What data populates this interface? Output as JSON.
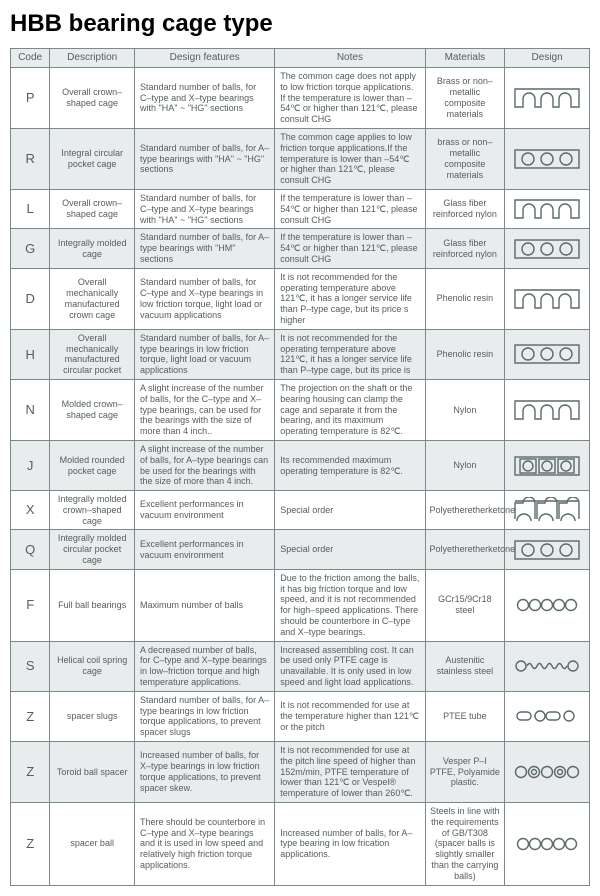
{
  "title": "HBB bearing cage type",
  "headers": [
    "Code",
    "Description",
    "Design features",
    "Notes",
    "Materials",
    "Design"
  ],
  "rows": [
    {
      "shaded": false,
      "code": "P",
      "desc": "Overall crown–shaped cage",
      "feat": "Standard number of balls, for C–type and X–type bearings with \"HA\" ~ \"HG\" sections",
      "notes": "The common cage does not apply to low friction torque applications. If the temperature is lower than –54℃ or higher than 121℃, please consult CHG",
      "mat": "Brass or non–metallic composite materials",
      "design": "crown"
    },
    {
      "shaded": true,
      "code": "R",
      "desc": "Integral circular pocket cage",
      "feat": "Standard number of balls, for A–type bearings with \"HA\" ~ \"HG\" sections",
      "notes": "The common cage applies to low friction torque applications.If the temperature is lower than –54℃ or higher than 121℃, please consult CHG",
      "mat": "brass or non–metallic composite materials",
      "design": "circbox"
    },
    {
      "shaded": false,
      "code": "L",
      "desc": "Overall crown–shaped cage",
      "feat": "Standard number of balls, for C–type and X–type bearings with \"HA\" ~ \"HG\" sections",
      "notes": "If the temperature is lower than –54℃ or higher than 121℃, please consult CHG",
      "mat": "Glass fiber reinforced nylon",
      "design": "crown"
    },
    {
      "shaded": true,
      "code": "G",
      "desc": "Integrally molded cage",
      "feat": "Standard number of balls, for A–type bearings with \"HM\" sections",
      "notes": "If the temperature is lower than –54℃ or higher than 121℃, please consult CHG",
      "mat": "Glass fiber reinforced nylon",
      "design": "circbox"
    },
    {
      "shaded": false,
      "code": "D",
      "desc": "Overall mechanically manufactured crown cage",
      "feat": "Standard number of balls, for C–type and X–type bearings in low friction torque, light load or vacuum applications",
      "notes": "It is not recommended for the operating temperature above 121℃, it has a longer service life than P–type cage, but its price s higher",
      "mat": "Phenolic resin",
      "design": "crown"
    },
    {
      "shaded": true,
      "code": "H",
      "desc": "Overall mechanically manufactured circular pocket",
      "feat": "Standard number of balls, for A–type bearings in low friction torque, light load or vacuum applications",
      "notes": "It is not recommended for the operating temperature above 121℃, it has a longer service life than P–type cage, but its price is",
      "mat": "Phenolic resin",
      "design": "circbox"
    },
    {
      "shaded": false,
      "code": "N",
      "desc": "Molded crown–shaped cage",
      "feat": "A slight increase of the number of balls, for the C–type and X–type bearings, can be used for the bearings with the size of more than 4 inch..",
      "notes": "The projection on the shaft or the bearing housing can clamp the cage and separate it from the bearing, and its maximum operating temperature is 82℃.",
      "mat": "Nylon",
      "design": "crown"
    },
    {
      "shaded": true,
      "code": "J",
      "desc": "Molded rounded pocket cage",
      "feat": "A slight increase of the number of balls, for A–type bearings can be used for the bearings with the size of more than 4 inch.",
      "notes": "Its recommended maximum operating temperature is 82℃.",
      "mat": "Nylon",
      "design": "sqbox"
    },
    {
      "shaded": false,
      "code": "X",
      "desc": "Integrally molded crown–shaped cage",
      "feat": "Excellent performances in vacuum environment",
      "notes": "Special order",
      "mat": "Polyetheretherketone",
      "design": "crownopen"
    },
    {
      "shaded": true,
      "code": "Q",
      "desc": "Integrally molded circular pocket cage",
      "feat": "Excellent performances in vacuum environment",
      "notes": "Special order",
      "mat": "Polyetheretherketone",
      "design": "circbox"
    },
    {
      "shaded": false,
      "code": "F",
      "desc": "Full ball bearings",
      "feat": "Maximum number of balls",
      "notes": "Due to the friction among the balls, it has big friction torque and low speed, and it is not recommended for high–speed applications. There should be counterbore in C–type and X–type bearings.",
      "mat": "GCr15/9Cr18 steel",
      "design": "circles5"
    },
    {
      "shaded": true,
      "code": "S",
      "desc": "Helical coil spring cage",
      "feat": "A decreased number of balls, for C–type and X–type bearings in low–friction torque and high temperature applications.",
      "notes": "Increased assembling cost. It can be used only PTFE cage is unavailable. It is only used in low speed and light load applications.",
      "mat": "Austenitic stainless steel",
      "design": "spring"
    },
    {
      "shaded": false,
      "code": "Z",
      "desc": "spacer slugs",
      "feat": "Standard number of balls, for A–type bearings in low friction torque applications, to prevent spacer slugs",
      "notes": "It is not recommended for use at the temperature higher than 121℃ or the pitch",
      "mat": "PTEE tube",
      "design": "slugs"
    },
    {
      "shaded": true,
      "code": "Z",
      "desc": "Toroid ball spacer",
      "feat": "Increased number of balls, for X–type bearings in low friction torque applications, to prevent spacer skew.",
      "notes": "It is not recommended for use at the pitch line speed of higher than 152m/min, PTFE temperature of lower than 121℃ or Vespel® temperature of lower than 260℃.",
      "mat": "Vesper P–I PTFE, Polyamide plastic.",
      "design": "toroid"
    },
    {
      "shaded": false,
      "code": "Z",
      "desc": "spacer ball",
      "feat": "There should be counterbore in C–type and X–type bearings and it is used in low speed and relatively high friction torque applications.",
      "notes": "Increased number of balls, for A–type bearing in low frication applications.",
      "mat": "Steels in line with the requirements of GB/T308 (spacer balls is slightly smaller than the carrying balls)",
      "design": "circles5b"
    }
  ]
}
